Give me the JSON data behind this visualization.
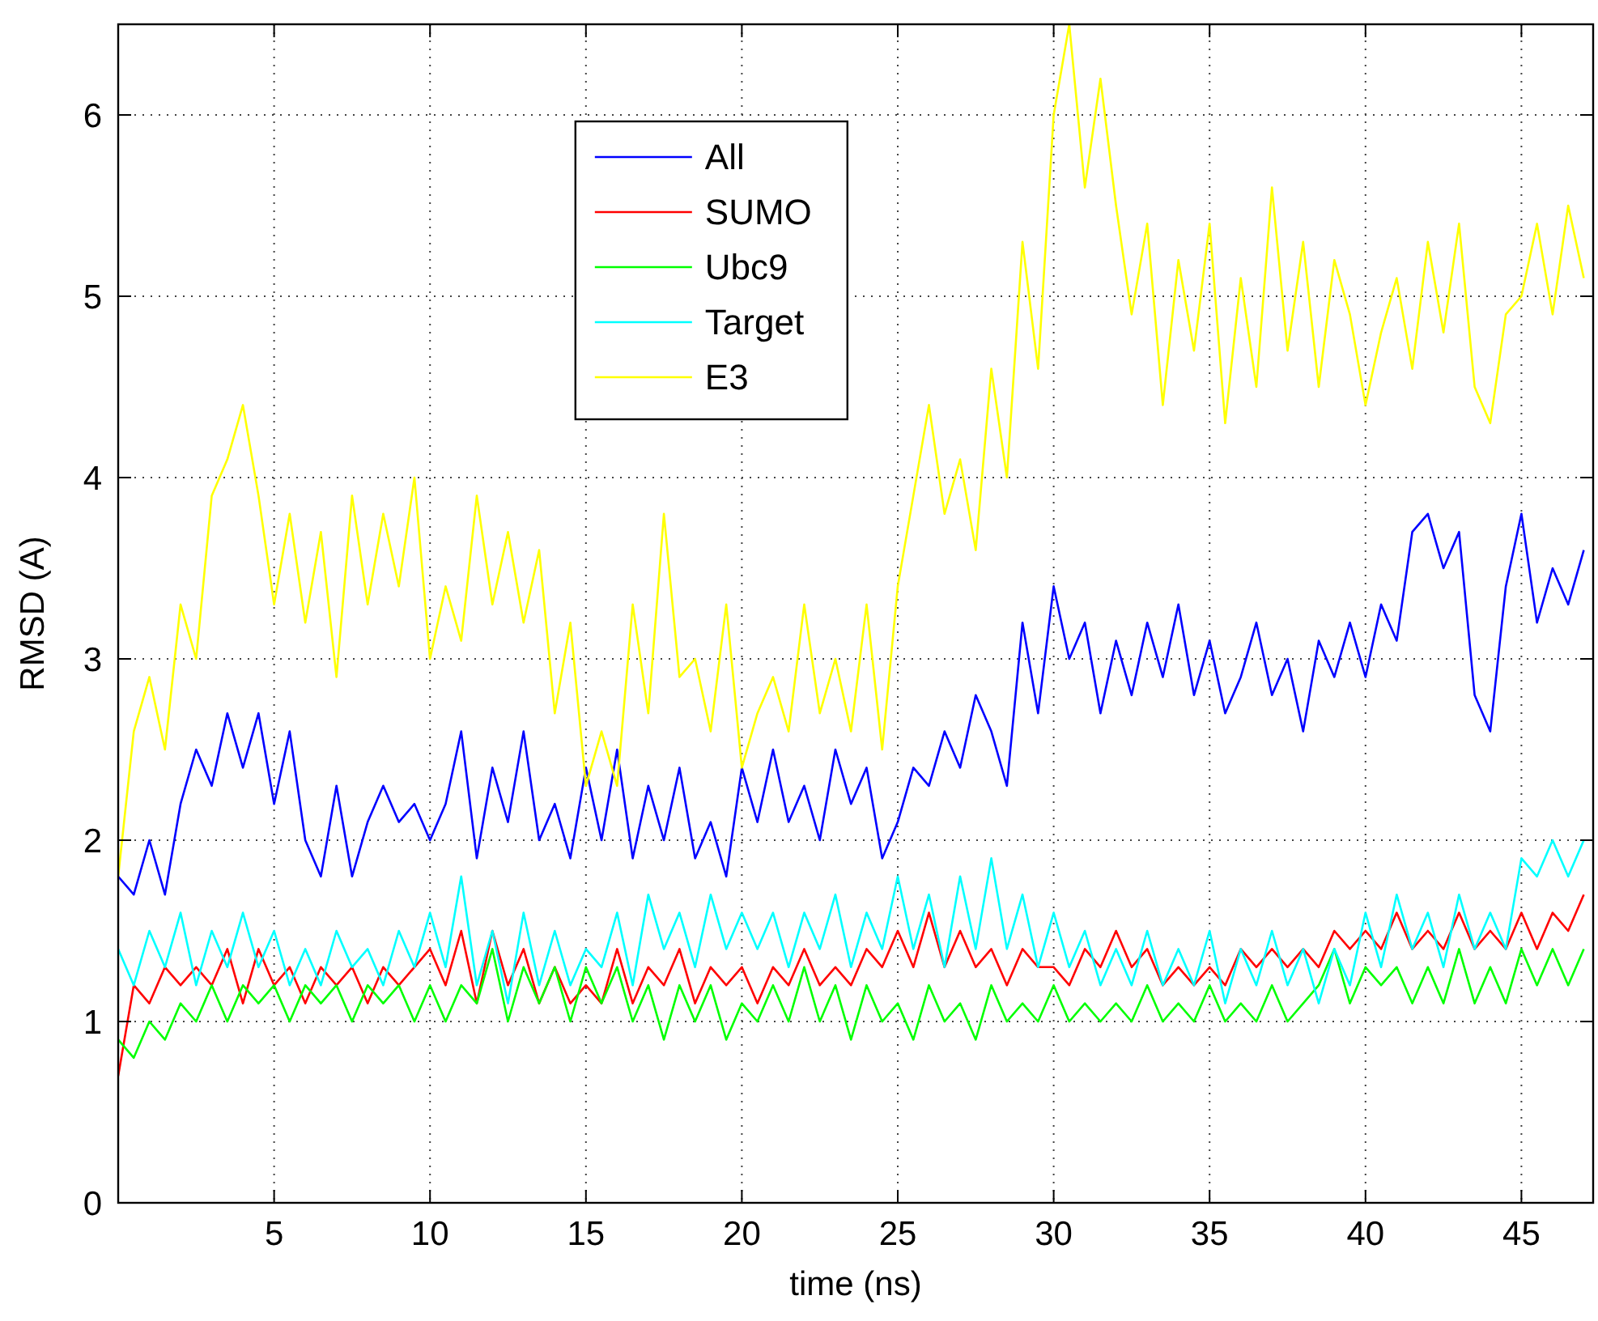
{
  "chart_data": {
    "type": "line",
    "xlabel": "time (ns)",
    "ylabel": "RMSD (A)",
    "x": [
      0,
      0.5,
      1,
      1.5,
      2,
      2.5,
      3,
      3.5,
      4,
      4.5,
      5,
      5.5,
      6,
      6.5,
      7,
      7.5,
      8,
      8.5,
      9,
      9.5,
      10,
      10.5,
      11,
      11.5,
      12,
      12.5,
      13,
      13.5,
      14,
      14.5,
      15,
      15.5,
      16,
      16.5,
      17,
      17.5,
      18,
      18.5,
      19,
      19.5,
      20,
      20.5,
      21,
      21.5,
      22,
      22.5,
      23,
      23.5,
      24,
      24.5,
      25,
      25.5,
      26,
      26.5,
      27,
      27.5,
      28,
      28.5,
      29,
      29.5,
      30,
      30.5,
      31,
      31.5,
      32,
      32.5,
      33,
      33.5,
      34,
      34.5,
      35,
      35.5,
      36,
      36.5,
      37,
      37.5,
      38,
      38.5,
      39,
      39.5,
      40,
      40.5,
      41,
      41.5,
      42,
      42.5,
      43,
      43.5,
      44,
      44.5,
      45,
      45.5,
      46,
      46.5,
      47
    ],
    "series": [
      {
        "name": "All",
        "color": "#0000ff",
        "values": [
          1.8,
          1.7,
          2.0,
          1.7,
          2.2,
          2.5,
          2.3,
          2.7,
          2.4,
          2.7,
          2.2,
          2.6,
          2.0,
          1.8,
          2.3,
          1.8,
          2.1,
          2.3,
          2.1,
          2.2,
          2.0,
          2.2,
          2.6,
          1.9,
          2.4,
          2.1,
          2.6,
          2.0,
          2.2,
          1.9,
          2.4,
          2.0,
          2.5,
          1.9,
          2.3,
          2.0,
          2.4,
          1.9,
          2.1,
          1.8,
          2.4,
          2.1,
          2.5,
          2.1,
          2.3,
          2.0,
          2.5,
          2.2,
          2.4,
          1.9,
          2.1,
          2.4,
          2.3,
          2.6,
          2.4,
          2.8,
          2.6,
          2.3,
          3.2,
          2.7,
          3.4,
          3.0,
          3.2,
          2.7,
          3.1,
          2.8,
          3.2,
          2.9,
          3.3,
          2.8,
          3.1,
          2.7,
          2.9,
          3.2,
          2.8,
          3.0,
          2.6,
          3.1,
          2.9,
          3.2,
          2.9,
          3.3,
          3.1,
          3.7,
          3.8,
          3.5,
          3.7,
          2.8,
          2.6,
          3.4,
          3.8,
          3.2,
          3.5,
          3.3,
          3.6
        ]
      },
      {
        "name": "SUMO",
        "color": "#ff0000",
        "values": [
          0.7,
          1.2,
          1.1,
          1.3,
          1.2,
          1.3,
          1.2,
          1.4,
          1.1,
          1.4,
          1.2,
          1.3,
          1.1,
          1.3,
          1.2,
          1.3,
          1.1,
          1.3,
          1.2,
          1.3,
          1.4,
          1.2,
          1.5,
          1.1,
          1.5,
          1.2,
          1.4,
          1.1,
          1.3,
          1.1,
          1.2,
          1.1,
          1.4,
          1.1,
          1.3,
          1.2,
          1.4,
          1.1,
          1.3,
          1.2,
          1.3,
          1.1,
          1.3,
          1.2,
          1.4,
          1.2,
          1.3,
          1.2,
          1.4,
          1.3,
          1.5,
          1.3,
          1.6,
          1.3,
          1.5,
          1.3,
          1.4,
          1.2,
          1.4,
          1.3,
          1.3,
          1.2,
          1.4,
          1.3,
          1.5,
          1.3,
          1.4,
          1.2,
          1.3,
          1.2,
          1.3,
          1.2,
          1.4,
          1.3,
          1.4,
          1.3,
          1.4,
          1.3,
          1.5,
          1.4,
          1.5,
          1.4,
          1.6,
          1.4,
          1.5,
          1.4,
          1.6,
          1.4,
          1.5,
          1.4,
          1.6,
          1.4,
          1.6,
          1.5,
          1.7
        ]
      },
      {
        "name": "Ubc9",
        "color": "#00ff00",
        "values": [
          0.9,
          0.8,
          1.0,
          0.9,
          1.1,
          1.0,
          1.2,
          1.0,
          1.2,
          1.1,
          1.2,
          1.0,
          1.2,
          1.1,
          1.2,
          1.0,
          1.2,
          1.1,
          1.2,
          1.0,
          1.2,
          1.0,
          1.2,
          1.1,
          1.4,
          1.0,
          1.3,
          1.1,
          1.3,
          1.0,
          1.3,
          1.1,
          1.3,
          1.0,
          1.2,
          0.9,
          1.2,
          1.0,
          1.2,
          0.9,
          1.1,
          1.0,
          1.2,
          1.0,
          1.3,
          1.0,
          1.2,
          0.9,
          1.2,
          1.0,
          1.1,
          0.9,
          1.2,
          1.0,
          1.1,
          0.9,
          1.2,
          1.0,
          1.1,
          1.0,
          1.2,
          1.0,
          1.1,
          1.0,
          1.1,
          1.0,
          1.2,
          1.0,
          1.1,
          1.0,
          1.2,
          1.0,
          1.1,
          1.0,
          1.2,
          1.0,
          1.1,
          1.2,
          1.4,
          1.1,
          1.3,
          1.2,
          1.3,
          1.1,
          1.3,
          1.1,
          1.4,
          1.1,
          1.3,
          1.1,
          1.4,
          1.2,
          1.4,
          1.2,
          1.4
        ]
      },
      {
        "name": "Target",
        "color": "#00ffff",
        "values": [
          1.4,
          1.2,
          1.5,
          1.3,
          1.6,
          1.2,
          1.5,
          1.3,
          1.6,
          1.3,
          1.5,
          1.2,
          1.4,
          1.2,
          1.5,
          1.3,
          1.4,
          1.2,
          1.5,
          1.3,
          1.6,
          1.3,
          1.8,
          1.2,
          1.5,
          1.1,
          1.6,
          1.2,
          1.5,
          1.2,
          1.4,
          1.3,
          1.6,
          1.2,
          1.7,
          1.4,
          1.6,
          1.3,
          1.7,
          1.4,
          1.6,
          1.4,
          1.6,
          1.3,
          1.6,
          1.4,
          1.7,
          1.3,
          1.6,
          1.4,
          1.8,
          1.4,
          1.7,
          1.3,
          1.8,
          1.4,
          1.9,
          1.4,
          1.7,
          1.3,
          1.6,
          1.3,
          1.5,
          1.2,
          1.4,
          1.2,
          1.5,
          1.2,
          1.4,
          1.2,
          1.5,
          1.1,
          1.4,
          1.2,
          1.5,
          1.2,
          1.4,
          1.1,
          1.4,
          1.2,
          1.6,
          1.3,
          1.7,
          1.4,
          1.6,
          1.3,
          1.7,
          1.4,
          1.6,
          1.4,
          1.9,
          1.8,
          2.0,
          1.8,
          2.0
        ]
      },
      {
        "name": "E3",
        "color": "#ffff00",
        "values": [
          1.8,
          2.6,
          2.9,
          2.5,
          3.3,
          3.0,
          3.9,
          4.1,
          4.4,
          3.9,
          3.3,
          3.8,
          3.2,
          3.7,
          2.9,
          3.9,
          3.3,
          3.8,
          3.4,
          4.0,
          3.0,
          3.4,
          3.1,
          3.9,
          3.3,
          3.7,
          3.2,
          3.6,
          2.7,
          3.2,
          2.3,
          2.6,
          2.3,
          3.3,
          2.7,
          3.8,
          2.9,
          3.0,
          2.6,
          3.3,
          2.4,
          2.7,
          2.9,
          2.6,
          3.3,
          2.7,
          3.0,
          2.6,
          3.3,
          2.5,
          3.4,
          3.9,
          4.4,
          3.8,
          4.1,
          3.6,
          4.6,
          4.0,
          5.3,
          4.6,
          6.0,
          6.5,
          5.6,
          6.2,
          5.5,
          4.9,
          5.4,
          4.4,
          5.2,
          4.7,
          5.4,
          4.3,
          5.1,
          4.5,
          5.6,
          4.7,
          5.3,
          4.5,
          5.2,
          4.9,
          4.4,
          4.8,
          5.1,
          4.6,
          5.3,
          4.8,
          5.4,
          4.5,
          4.3,
          4.9,
          5.0,
          5.4,
          4.9,
          5.5,
          5.1
        ]
      }
    ],
    "xlim": [
      0,
      47.3
    ],
    "xticks": [
      5,
      10,
      15,
      20,
      25,
      30,
      35,
      40,
      45
    ],
    "ylim": [
      0,
      6.5
    ],
    "yticks": [
      0,
      1,
      2,
      3,
      4,
      5,
      6
    ],
    "grid": true,
    "legend": "top",
    "marker": "none",
    "line_style": "solid"
  }
}
